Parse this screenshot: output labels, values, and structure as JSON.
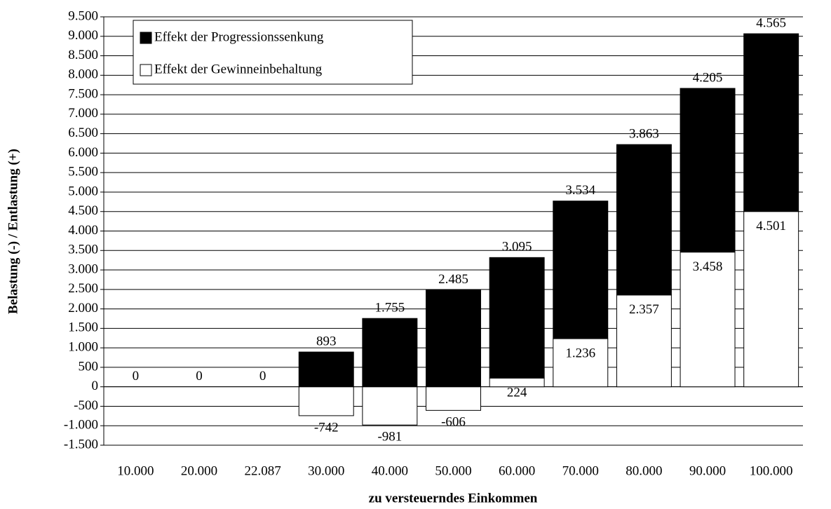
{
  "chart_data": {
    "type": "bar",
    "stacked": true,
    "x_label": "zu versteuerndes Einkommen",
    "y_label": "Belastung (-) / Entlastung (+)",
    "categories": [
      "10.000",
      "20.000",
      "22.087",
      "30.000",
      "40.000",
      "50.000",
      "60.000",
      "70.000",
      "80.000",
      "90.000",
      "100.000"
    ],
    "series": [
      {
        "name": "Effekt der Progressionssenkung",
        "color": "#000000",
        "values": [
          0,
          0,
          0,
          893,
          1755,
          2485,
          3095,
          3534,
          3863,
          4205,
          4565
        ],
        "value_labels": [
          "0",
          "0",
          "0",
          "893",
          "1.755",
          "2.485",
          "3.095",
          "3.534",
          "3.863",
          "4.205",
          "4.565"
        ]
      },
      {
        "name": "Effekt der Gewinneinbehaltung",
        "color": "#ffffff",
        "values": [
          null,
          null,
          null,
          -742,
          -981,
          -606,
          224,
          1236,
          2357,
          3458,
          4501
        ],
        "value_labels": [
          null,
          null,
          null,
          "-742",
          "-981",
          "-606",
          "224",
          "1.236",
          "2.357",
          "3.458",
          "4.501"
        ]
      }
    ],
    "ylim": [
      -1500,
      9500
    ],
    "yticks": [
      {
        "value": -1500,
        "label": "-1.500"
      },
      {
        "value": -1000,
        "label": "-1.000"
      },
      -500,
      0,
      500,
      {
        "value": 1000,
        "label": "1.000"
      },
      {
        "value": 1500,
        "label": "1.500"
      },
      {
        "value": 2000,
        "label": "2.000"
      },
      {
        "value": 2500,
        "label": "2.500"
      },
      {
        "value": 3000,
        "label": "3.000"
      },
      {
        "value": 3500,
        "label": "3.500"
      },
      {
        "value": 4000,
        "label": "4.000"
      },
      {
        "value": 4500,
        "label": "4.500"
      },
      {
        "value": 5000,
        "label": "5.000"
      },
      {
        "value": 5500,
        "label": "5.500"
      },
      {
        "value": 6000,
        "label": "6.000"
      },
      {
        "value": 6500,
        "label": "6.500"
      },
      {
        "value": 7000,
        "label": "7.000"
      },
      {
        "value": 7500,
        "label": "7.500"
      },
      {
        "value": 8000,
        "label": "8.000"
      },
      {
        "value": 8500,
        "label": "8.500"
      },
      {
        "value": 9000,
        "label": "9.000"
      },
      {
        "value": 9500,
        "label": "9.500"
      }
    ],
    "grid": true,
    "legend_position": "upper left"
  }
}
